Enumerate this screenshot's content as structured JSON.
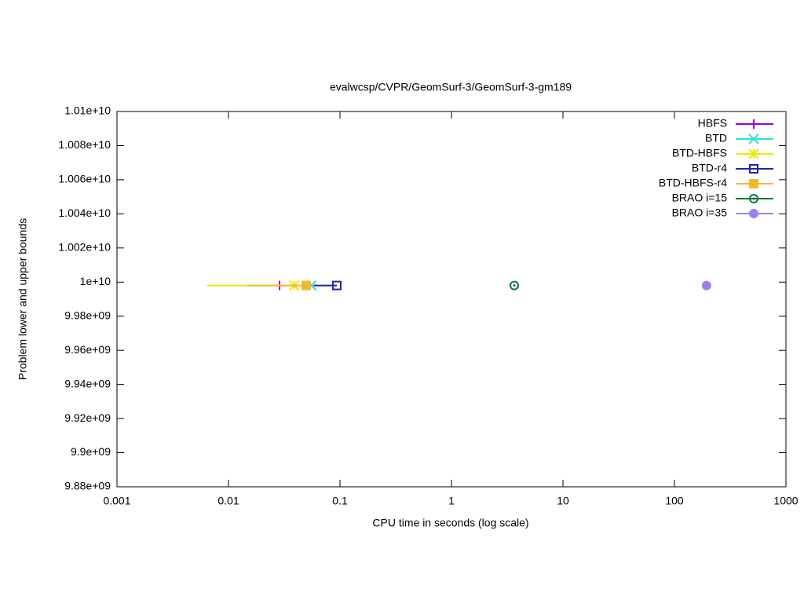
{
  "chart_data": {
    "type": "line",
    "title": "evalwcsp/CVPR/GeomSurf-3/GeomSurf-3-gm189",
    "x_label": "CPU time in seconds (log scale)",
    "y_label": "Problem lower and upper bounds",
    "x_log": true,
    "xlim": [
      0.001,
      1000
    ],
    "xticks": [
      0.001,
      0.01,
      0.1,
      1,
      10,
      100,
      1000
    ],
    "ylim": [
      9880000000,
      10100000000
    ],
    "yticks": [
      {
        "value": 9880000000,
        "label": "9.88e+09"
      },
      {
        "value": 9900000000,
        "label": "9.9e+09"
      },
      {
        "value": 9920000000,
        "label": "9.92e+09"
      },
      {
        "value": 9940000000,
        "label": "9.94e+09"
      },
      {
        "value": 9960000000,
        "label": "9.96e+09"
      },
      {
        "value": 9980000000,
        "label": "9.98e+09"
      },
      {
        "value": 10000000000,
        "label": "1e+10"
      },
      {
        "value": 10020000000,
        "label": "1.002e+10"
      },
      {
        "value": 10040000000,
        "label": "1.004e+10"
      },
      {
        "value": 10060000000,
        "label": "1.006e+10"
      },
      {
        "value": 10080000000,
        "label": "1.008e+10"
      },
      {
        "value": 10100000000,
        "label": "1.01e+10"
      }
    ],
    "legend": "top-right",
    "series": [
      {
        "name": "HBFS",
        "color": "#9400d3",
        "marker": "plus",
        "x": [
          0.0287
        ],
        "values": [
          9998000000
        ]
      },
      {
        "name": "BTD",
        "color": "#33dddd",
        "marker": "cross",
        "x": [
          0.0557
        ],
        "values": [
          9998000000
        ]
      },
      {
        "name": "BTD-HBFS",
        "color": "#e8e800",
        "marker": "star",
        "x": [
          0.00646,
          0.039
        ],
        "values": [
          9998000000,
          9998000000
        ]
      },
      {
        "name": "BTD-r4",
        "color": "#2222aa",
        "marker": "open-square",
        "x": [
          0.058,
          0.0937
        ],
        "values": [
          9998000000,
          9998000000
        ]
      },
      {
        "name": "BTD-HBFS-r4",
        "color": "#f4b830",
        "marker": "square",
        "x": [
          0.0147,
          0.0498
        ],
        "values": [
          9998000000,
          9998000000
        ]
      },
      {
        "name": "BRAO i=15",
        "color": "#007a3d",
        "marker": "open-circle",
        "x": [
          3.66
        ],
        "values": [
          9998000000
        ]
      },
      {
        "name": "BRAO i=35",
        "color": "#9f7fef",
        "marker": "circle",
        "x": [
          194
        ],
        "values": [
          9998000000
        ]
      }
    ]
  }
}
